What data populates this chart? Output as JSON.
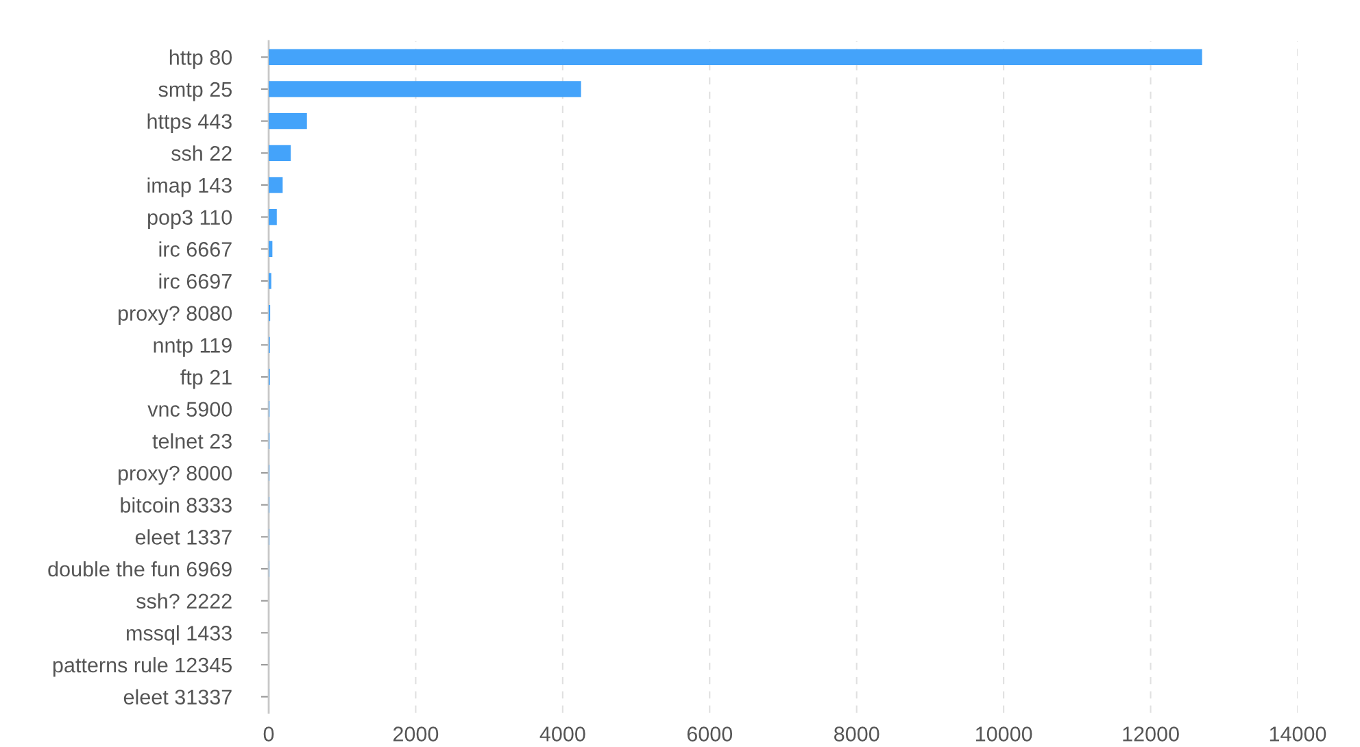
{
  "chart_data": {
    "type": "bar",
    "orientation": "horizontal",
    "categories": [
      "http 80",
      "smtp 25",
      "https 443",
      "ssh 22",
      "imap 143",
      "pop3 110",
      "irc 6667",
      "irc 6697",
      "proxy? 8080",
      "nntp 119",
      "ftp 21",
      "vnc 5900",
      "telnet 23",
      "proxy? 8000",
      "bitcoin 8333",
      "eleet 1337",
      "double the fun 6969",
      "ssh? 2222",
      "mssql 1433",
      "patterns rule 12345",
      "eleet 31337"
    ],
    "values": [
      12700,
      4250,
      520,
      300,
      190,
      110,
      50,
      35,
      20,
      15,
      15,
      10,
      10,
      8,
      7,
      6,
      5,
      null,
      null,
      null,
      null
    ],
    "color": "#44a3fa",
    "xlim": [
      0,
      14000
    ],
    "xticks": [
      0,
      2000,
      4000,
      6000,
      8000,
      10000,
      12000,
      14000
    ],
    "grid": "x"
  }
}
